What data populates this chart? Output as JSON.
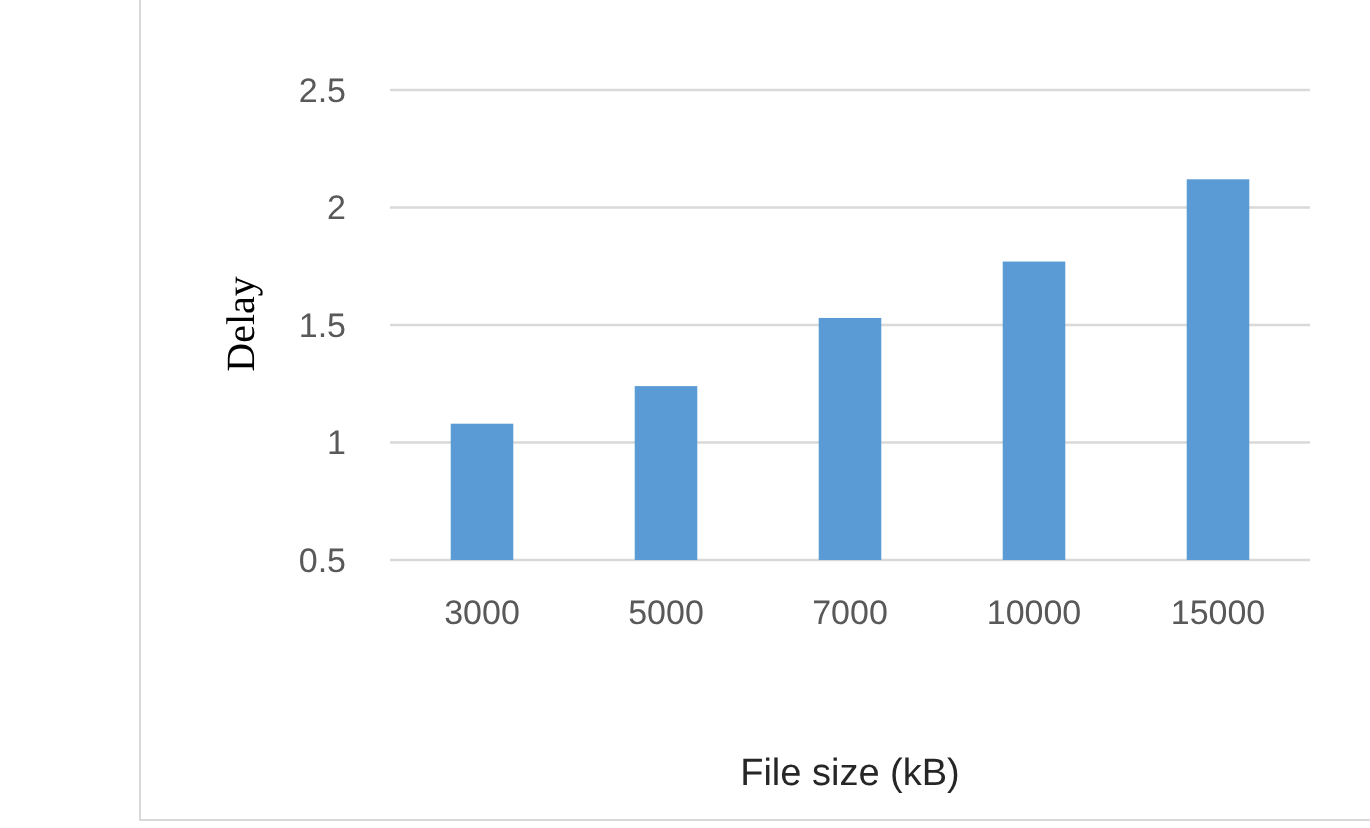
{
  "chart_data": {
    "type": "bar",
    "xlabel": "File size (kB)",
    "ylabel": "Delay",
    "categories": [
      "3000",
      "5000",
      "7000",
      "10000",
      "15000"
    ],
    "values": [
      1.08,
      1.24,
      1.53,
      1.77,
      2.12
    ],
    "color": "#5b9bd5",
    "ylim": [
      0.5,
      2.5
    ],
    "yticks": [
      0.5,
      1,
      1.5,
      2,
      2.5
    ],
    "grid": "y"
  }
}
